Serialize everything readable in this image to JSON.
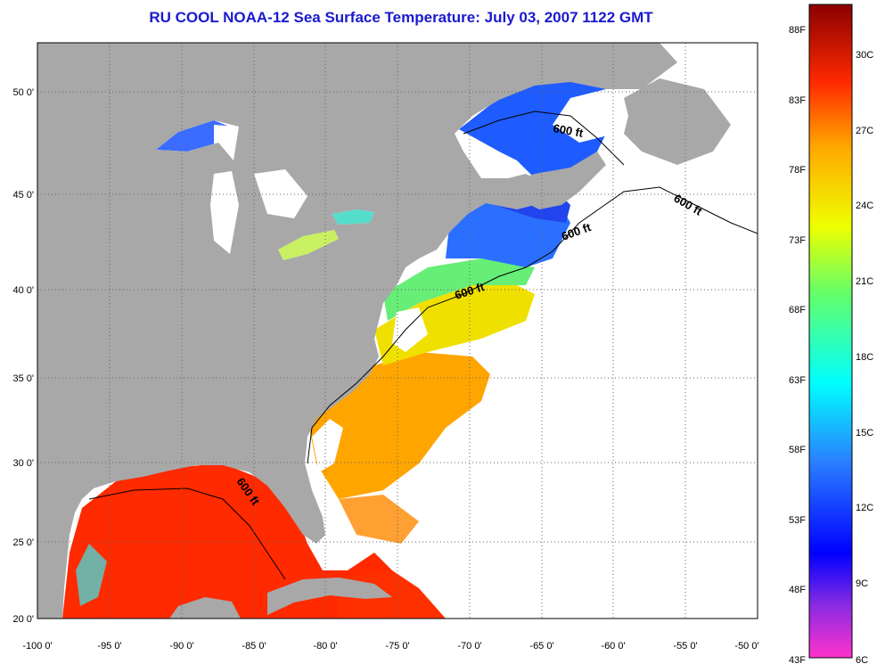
{
  "title": "RU COOL  NOAA-12  Sea Surface Temperature:  July 03, 2007 1122 GMT",
  "map": {
    "lon_range": [
      -100,
      -50
    ],
    "lat_range": [
      20,
      52.5
    ],
    "lon_ticks": [
      "-100 0'",
      "-95 0'",
      "-90 0'",
      "-85 0'",
      "-80 0'",
      "-75 0'",
      "-70 0'",
      "-65 0'",
      "-60 0'",
      "-55 0'",
      "-50 0'"
    ],
    "lat_ticks": [
      "20 0'",
      "25 0'",
      "30 0'",
      "35 0'",
      "40 0'",
      "45 0'",
      "50 0'"
    ],
    "contour_label": "600 ft",
    "land_color": "#a8a8a8",
    "cloud_color": "#ffffff"
  },
  "colorbar": {
    "left_labels": [
      "88F",
      "83F",
      "78F",
      "73F",
      "68F",
      "63F",
      "58F",
      "53F",
      "48F",
      "43F"
    ],
    "right_labels": [
      "30C",
      "27C",
      "24C",
      "21C",
      "18C",
      "15C",
      "12C",
      "9C",
      "6C"
    ]
  }
}
